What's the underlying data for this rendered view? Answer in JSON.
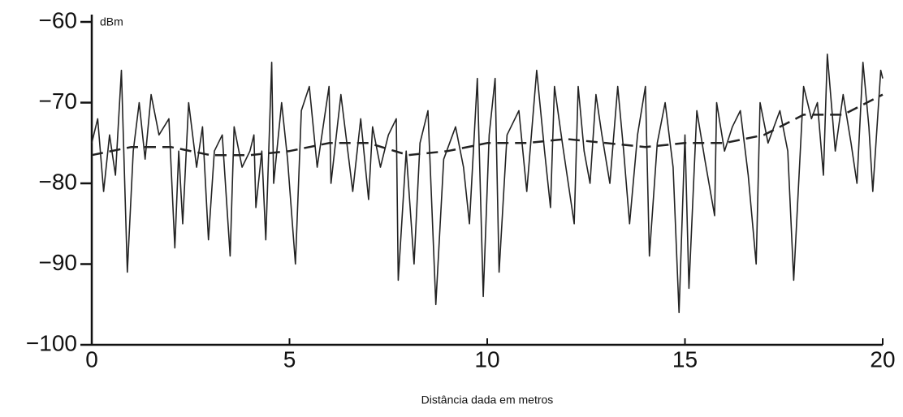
{
  "chart_data": {
    "type": "line",
    "ylabel": "dBm",
    "xlabel": "Distância dada em metros",
    "xlim": [
      0,
      20
    ],
    "xticks": [
      0,
      5,
      10,
      15,
      20
    ],
    "ylim": [
      -100,
      -60
    ],
    "yticks": [
      {
        "value": -60,
        "label": "−60"
      },
      {
        "value": -70,
        "label": "−70"
      },
      {
        "value": -80,
        "label": "−80"
      },
      {
        "value": -90,
        "label": "−90"
      },
      {
        "value": -100,
        "label": "−100"
      }
    ],
    "series": [
      {
        "color": "#222222",
        "style": "solid",
        "x": [
          0,
          0.15,
          0.3,
          0.45,
          0.6,
          0.75,
          0.9,
          1.05,
          1.2,
          1.35,
          1.5,
          1.7,
          1.95,
          2.1,
          2.2,
          2.3,
          2.45,
          2.65,
          2.8,
          2.95,
          3.1,
          3.3,
          3.5,
          3.6,
          3.8,
          4.0,
          4.1,
          4.15,
          4.3,
          4.4,
          4.55,
          4.6,
          4.8,
          4.95,
          5.15,
          5.3,
          5.5,
          5.7,
          5.85,
          6.0,
          6.05,
          6.3,
          6.45,
          6.6,
          6.8,
          7.0,
          7.1,
          7.3,
          7.5,
          7.7,
          7.75,
          7.95,
          8.15,
          8.3,
          8.5,
          8.7,
          8.9,
          9.2,
          9.4,
          9.55,
          9.75,
          9.9,
          10.05,
          10.2,
          10.3,
          10.5,
          10.8,
          11.0,
          11.25,
          11.45,
          11.6,
          11.7,
          11.9,
          12.2,
          12.3,
          12.45,
          12.6,
          12.75,
          12.9,
          13.1,
          13.3,
          13.45,
          13.6,
          13.8,
          14.0,
          14.1,
          14.3,
          14.5,
          14.7,
          14.85,
          15.0,
          15.1,
          15.3,
          15.5,
          15.75,
          15.8,
          16.0,
          16.2,
          16.4,
          16.6,
          16.8,
          16.9,
          17.1,
          17.4,
          17.6,
          17.75,
          18.0,
          18.2,
          18.35,
          18.5,
          18.6,
          18.8,
          19.0,
          19.2,
          19.35,
          19.5,
          19.65,
          19.75,
          19.95,
          20.0
        ],
        "values": [
          -75,
          -72,
          -81,
          -74,
          -79,
          -66,
          -91,
          -76,
          -70,
          -77,
          -69,
          -74,
          -72,
          -88,
          -76,
          -85,
          -70,
          -78,
          -73,
          -87,
          -76,
          -74,
          -89,
          -73,
          -78,
          -76,
          -74,
          -83,
          -76,
          -87,
          -65,
          -80,
          -70,
          -77,
          -90,
          -71,
          -68,
          -78,
          -73,
          -68,
          -80,
          -69,
          -75,
          -81,
          -72,
          -82,
          -73,
          -78,
          -74,
          -72,
          -92,
          -76,
          -90,
          -75,
          -71,
          -95,
          -77,
          -73,
          -78,
          -85,
          -67,
          -94,
          -74,
          -67,
          -91,
          -74,
          -71,
          -81,
          -66,
          -76,
          -83,
          -68,
          -75,
          -85,
          -68,
          -76,
          -80,
          -69,
          -74,
          -80,
          -68,
          -76,
          -85,
          -74,
          -68,
          -89,
          -75,
          -70,
          -78,
          -96,
          -74,
          -93,
          -71,
          -77,
          -84,
          -70,
          -76,
          -73,
          -71,
          -79,
          -90,
          -70,
          -75,
          -71,
          -76,
          -92,
          -68,
          -72,
          -70,
          -79,
          -64,
          -76,
          -69,
          -75,
          -80,
          -65,
          -73,
          -81,
          -66,
          -67
        ]
      },
      {
        "color": "#222222",
        "style": "dashed",
        "x": [
          0,
          1,
          2,
          3,
          4,
          5,
          6,
          7,
          8,
          9,
          10,
          11,
          12,
          13,
          14,
          15,
          16,
          17,
          18,
          19,
          20
        ],
        "values": [
          -76.5,
          -75.5,
          -75.5,
          -76.5,
          -76.5,
          -76,
          -75,
          -75,
          -76.5,
          -76,
          -75,
          -75,
          -74.5,
          -75,
          -75.5,
          -75,
          -75,
          -74,
          -71.5,
          -71.5,
          -69
        ]
      }
    ]
  }
}
